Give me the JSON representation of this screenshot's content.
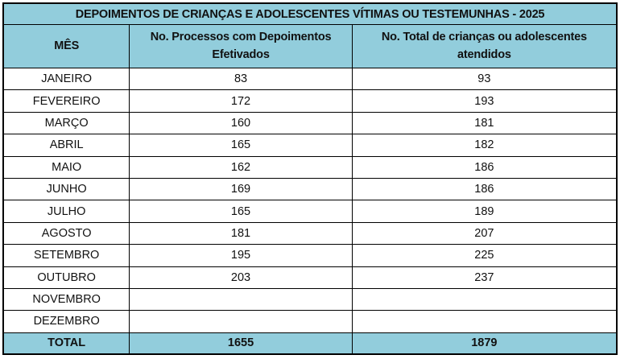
{
  "colors": {
    "accent_blue": "#92cddc",
    "grid_border": "#000000",
    "text": "#111111",
    "background": "#ffffff"
  },
  "table": {
    "title": "DEPOIMENTOS DE CRIANÇAS E ADOLESCENTES VÍTIMAS OU TESTEMUNHAS - 2025",
    "columns": {
      "month": "MÊS",
      "processos": "No. Processos com Depoimentos Efetivados",
      "atendidos": "No. Total de crianças ou adolescentes atendidos"
    },
    "rows": [
      {
        "month": "JANEIRO",
        "processos": "83",
        "atendidos": "93"
      },
      {
        "month": "FEVEREIRO",
        "processos": "172",
        "atendidos": "193"
      },
      {
        "month": "MARÇO",
        "processos": "160",
        "atendidos": "181"
      },
      {
        "month": "ABRIL",
        "processos": "165",
        "atendidos": "182"
      },
      {
        "month": "MAIO",
        "processos": "162",
        "atendidos": "186"
      },
      {
        "month": "JUNHO",
        "processos": "169",
        "atendidos": "186"
      },
      {
        "month": "JULHO",
        "processos": "165",
        "atendidos": "189"
      },
      {
        "month": "AGOSTO",
        "processos": "181",
        "atendidos": "207"
      },
      {
        "month": "SETEMBRO",
        "processos": "195",
        "atendidos": "225"
      },
      {
        "month": "OUTUBRO",
        "processos": "203",
        "atendidos": "237"
      },
      {
        "month": "NOVEMBRO",
        "processos": "",
        "atendidos": ""
      },
      {
        "month": "DEZEMBRO",
        "processos": "",
        "atendidos": ""
      }
    ],
    "total": {
      "label": "TOTAL",
      "processos": "1655",
      "atendidos": "1879"
    }
  }
}
